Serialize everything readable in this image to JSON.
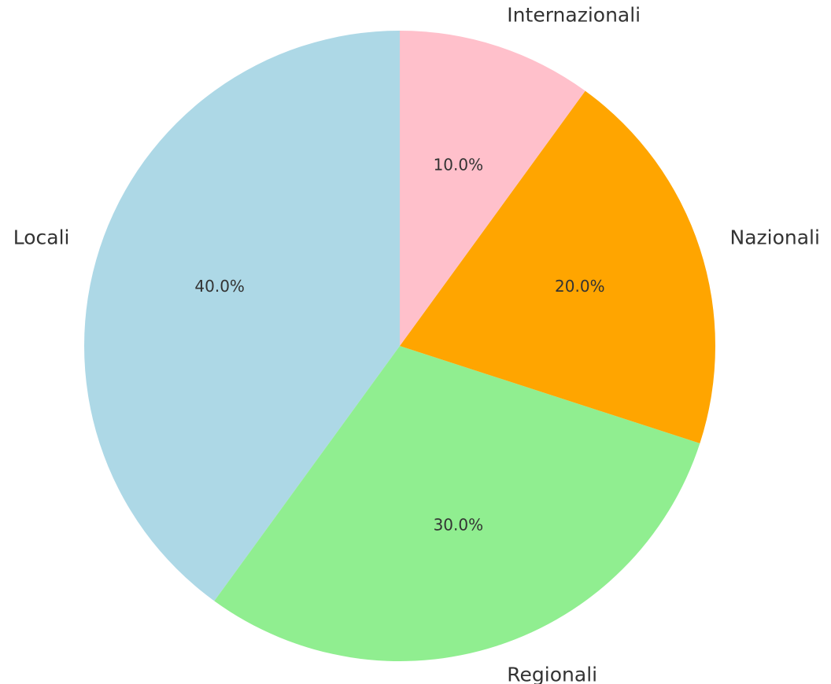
{
  "chart_data": {
    "type": "pie",
    "categories": [
      "Locali",
      "Regionali",
      "Nazionali",
      "Internazionali"
    ],
    "values": [
      40,
      30,
      20,
      10
    ],
    "value_labels": [
      "40.0%",
      "30.0%",
      "20.0%",
      "10.0%"
    ],
    "colors": [
      "#add8e6",
      "#90ee90",
      "#ffa500",
      "#ffc0cb"
    ],
    "start_angle": 90,
    "counterclockwise": true
  }
}
